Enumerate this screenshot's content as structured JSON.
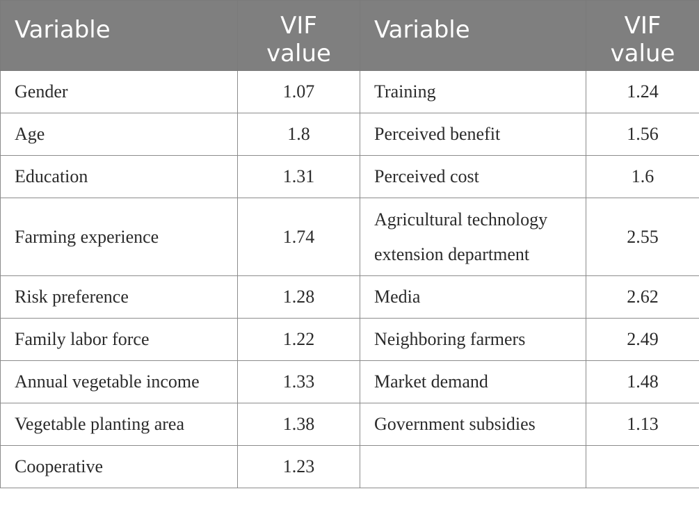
{
  "table": {
    "headers": [
      "Variable",
      "VIF\nvalue",
      "Variable",
      "VIF\nvalue"
    ],
    "header_parts": {
      "col1": "Variable",
      "col2_line1": "VIF",
      "col2_line2": "value",
      "col3": "Variable",
      "col4_line1": "VIF",
      "col4_line2": "value"
    },
    "rows": [
      {
        "var1": "Gender",
        "vif1": "1.07",
        "var2": "Training",
        "vif2": "1.24"
      },
      {
        "var1": "Age",
        "vif1": "1.8",
        "var2": "Perceived benefit",
        "vif2": "1.56"
      },
      {
        "var1": "Education",
        "vif1": "1.31",
        "var2": "Perceived cost",
        "vif2": "1.6"
      },
      {
        "var1": "Farming experience",
        "vif1": "1.74",
        "var2_line1": "Agricultural technology",
        "var2_line2": "extension department",
        "vif2": "2.55"
      },
      {
        "var1": "Risk preference",
        "vif1": "1.28",
        "var2": "Media",
        "vif2": "2.62"
      },
      {
        "var1": "Family labor force",
        "vif1": "1.22",
        "var2": "Neighboring farmers",
        "vif2": "2.49"
      },
      {
        "var1": "Annual vegetable income",
        "vif1": "1.33",
        "var2": "Market demand",
        "vif2": "1.48"
      },
      {
        "var1": "Vegetable planting area",
        "vif1": "1.38",
        "var2": "Government subsidies",
        "vif2": "1.13"
      },
      {
        "var1": "Cooperative",
        "vif1": "1.23",
        "var2": "",
        "vif2": ""
      }
    ]
  }
}
